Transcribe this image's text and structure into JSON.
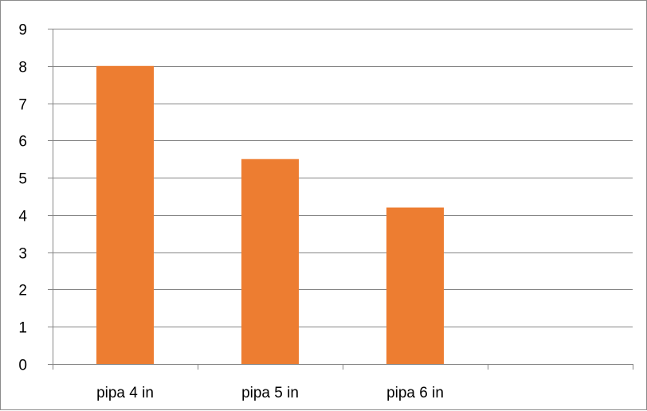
{
  "chart_data": {
    "type": "bar",
    "title": "",
    "xlabel": "",
    "ylabel": "",
    "categories": [
      "pipa 4 in",
      "pipa 5 in",
      "pipa 6 in",
      ""
    ],
    "values": [
      8,
      5.5,
      4.2,
      null
    ],
    "ylim": [
      0,
      9
    ],
    "yticks": [
      "0",
      "1",
      "2",
      "3",
      "4",
      "5",
      "6",
      "7",
      "8",
      "9"
    ],
    "grid": true,
    "legend": "none",
    "colors": {
      "bar": "#ED7D31",
      "grid": "#868686",
      "axis": "#868686",
      "text": "#000000"
    }
  }
}
